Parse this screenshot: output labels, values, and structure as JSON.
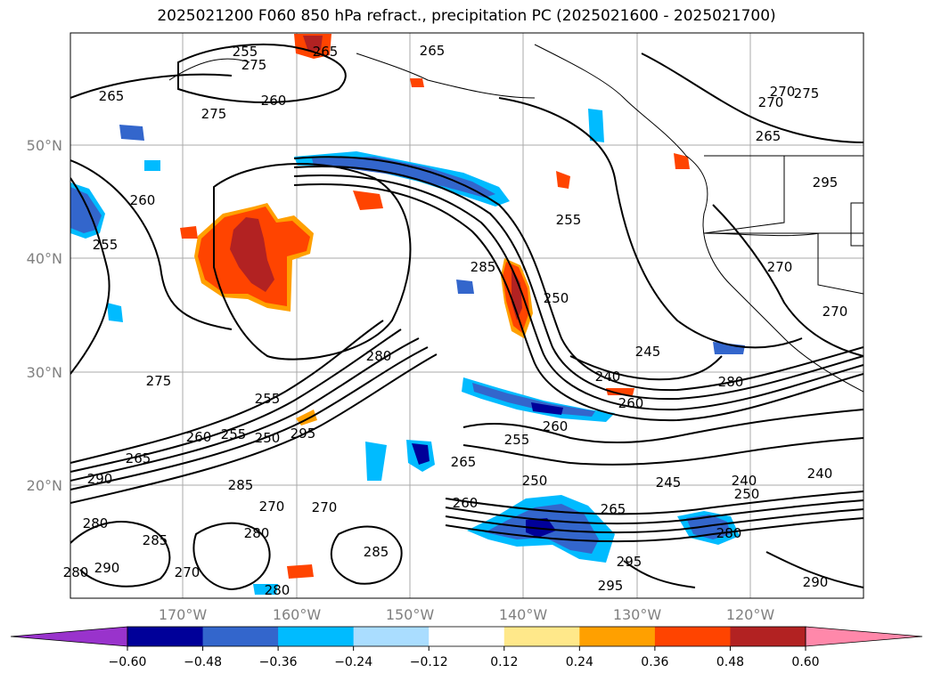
{
  "title": "2025021200 F060 850 hPa refract., precipitation PC (2025021600 - 2025021700)",
  "lat_labels": [
    "50°N",
    "40°N",
    "30°N",
    "20°N"
  ],
  "lon_labels": [
    "170°W",
    "160°W",
    "150°W",
    "140°W",
    "130°W",
    "120°W"
  ],
  "colorbar": {
    "labels": [
      "−0.60",
      "−0.48",
      "−0.36",
      "−0.24",
      "−0.12",
      "0.12",
      "0.24",
      "0.36",
      "0.48",
      "0.60"
    ],
    "colors": [
      "#9933cc",
      "#000099",
      "#3366cc",
      "#00bbff",
      "#aaddff",
      "#ffffff",
      "#ffe88a",
      "#ffa000",
      "#ff4400",
      "#b22222",
      "#ff88aa"
    ]
  },
  "contour_labels": [
    "255",
    "265",
    "260",
    "265",
    "265",
    "260",
    "255",
    "275",
    "275",
    "255",
    "285",
    "250",
    "245",
    "240",
    "270",
    "280",
    "260",
    "255",
    "260",
    "255",
    "250",
    "265",
    "290",
    "295",
    "285",
    "280",
    "270",
    "275",
    "280",
    "290",
    "285",
    "270",
    "280",
    "280",
    "270",
    "285",
    "295",
    "255",
    "265",
    "260",
    "265",
    "245",
    "240",
    "250",
    "280",
    "295",
    "290",
    "240",
    "280",
    "275",
    "270",
    "270",
    "265",
    "295",
    "270",
    "250",
    "260"
  ],
  "colors": {
    "pos_orange": "#ff4400",
    "pos_darkred": "#b22222",
    "pos_amber": "#ffa000",
    "neg_blue": "#3366cc",
    "neg_cyan": "#00bbff",
    "neg_navy": "#000099"
  }
}
